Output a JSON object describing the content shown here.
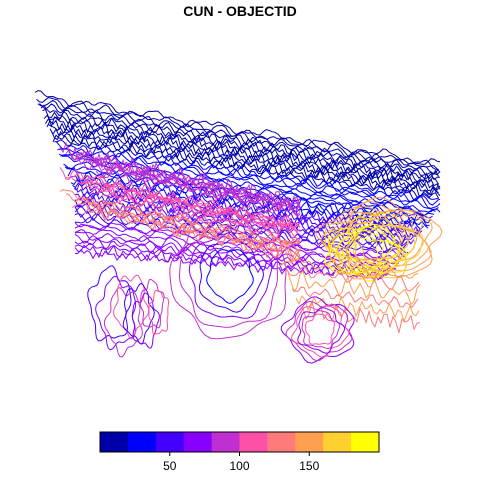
{
  "title": "CUN - OBJECTID",
  "legend": {
    "colors": [
      "#0000AA",
      "#0000FF",
      "#4400FF",
      "#8800FF",
      "#C030D0",
      "#FF50A8",
      "#FF7A7A",
      "#FFA050",
      "#FFD030",
      "#FFFF00"
    ],
    "range": [
      0,
      200
    ],
    "ticks": [
      50,
      100,
      150
    ]
  },
  "contours": {
    "count_by_band": [
      14,
      12,
      10,
      9,
      8,
      8,
      7,
      7,
      6,
      5
    ]
  }
}
